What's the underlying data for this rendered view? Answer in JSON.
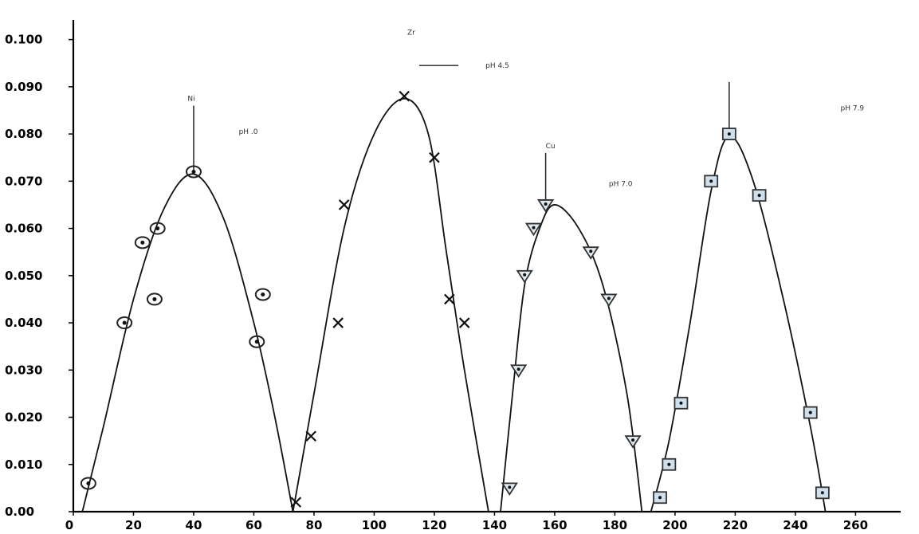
{
  "chart_data": {
    "type": "scatter",
    "title": "",
    "xlabel": "",
    "ylabel": "",
    "xlim": [
      0,
      275
    ],
    "ylim": [
      0,
      0.105
    ],
    "x_ticks": [
      {
        "value": 0,
        "label": "0"
      },
      {
        "value": 20,
        "label": "20"
      },
      {
        "value": 40,
        "label": "40"
      },
      {
        "value": 60,
        "label": "60"
      },
      {
        "value": 80,
        "label": "80"
      },
      {
        "value": 100,
        "label": "100"
      },
      {
        "value": 120,
        "label": "120"
      },
      {
        "value": 140,
        "label": "140"
      },
      {
        "value": 160,
        "label": "160"
      },
      {
        "value": 180,
        "label": "180"
      },
      {
        "value": 200,
        "label": "200"
      },
      {
        "value": 220,
        "label": "220"
      },
      {
        "value": 240,
        "label": "240"
      },
      {
        "value": 260,
        "label": "260"
      }
    ],
    "y_ticks": [
      {
        "value": 0,
        "label": "0.00"
      },
      {
        "value": 0.01,
        "label": "0.010"
      },
      {
        "value": 0.02,
        "label": "0.020"
      },
      {
        "value": 0.03,
        "label": "0.030"
      },
      {
        "value": 0.04,
        "label": "0.040"
      },
      {
        "value": 0.05,
        "label": "0.050"
      },
      {
        "value": 0.06,
        "label": "0.060"
      },
      {
        "value": 0.07,
        "label": "0.070"
      },
      {
        "value": 0.08,
        "label": "0.080"
      },
      {
        "value": 0.09,
        "label": "0.090"
      },
      {
        "value": 0.1,
        "label": "0.100"
      }
    ],
    "grid": false,
    "series": [
      {
        "marker": "circle",
        "points": [
          [
            5,
            0.006
          ],
          [
            17,
            0.04
          ],
          [
            23,
            0.057
          ],
          [
            27,
            0.045
          ],
          [
            28,
            0.06
          ],
          [
            40,
            0.072
          ],
          [
            61,
            0.036
          ],
          [
            63,
            0.046
          ]
        ],
        "curve": [
          [
            3,
            0.0
          ],
          [
            10,
            0.018
          ],
          [
            20,
            0.045
          ],
          [
            30,
            0.064
          ],
          [
            40,
            0.0715
          ],
          [
            50,
            0.062
          ],
          [
            60,
            0.04
          ],
          [
            67,
            0.02
          ],
          [
            73,
            0.0
          ]
        ],
        "peak": {
          "x": 40,
          "y": 0.072,
          "line_top": 0.086
        }
      },
      {
        "marker": "x",
        "points": [
          [
            74,
            0.002
          ],
          [
            79,
            0.016
          ],
          [
            88,
            0.04
          ],
          [
            90,
            0.065
          ],
          [
            110,
            0.088
          ],
          [
            120,
            0.075
          ],
          [
            125,
            0.045
          ],
          [
            130,
            0.04
          ]
        ],
        "curve": [
          [
            73,
            0.0
          ],
          [
            80,
            0.025
          ],
          [
            90,
            0.06
          ],
          [
            100,
            0.08
          ],
          [
            110,
            0.0875
          ],
          [
            118,
            0.08
          ],
          [
            124,
            0.055
          ],
          [
            130,
            0.03
          ],
          [
            138,
            0.0
          ]
        ],
        "peak": {
          "x": 110,
          "y": 0.088
        }
      },
      {
        "marker": "triangle",
        "points": [
          [
            145,
            0.005
          ],
          [
            148,
            0.03
          ],
          [
            150,
            0.05
          ],
          [
            153,
            0.06
          ],
          [
            157,
            0.065
          ],
          [
            172,
            0.055
          ],
          [
            178,
            0.045
          ],
          [
            186,
            0.015
          ]
        ],
        "curve": [
          [
            142,
            0.0
          ],
          [
            146,
            0.025
          ],
          [
            150,
            0.048
          ],
          [
            155,
            0.06
          ],
          [
            160,
            0.065
          ],
          [
            168,
            0.06
          ],
          [
            176,
            0.048
          ],
          [
            184,
            0.025
          ],
          [
            189,
            0.0
          ]
        ],
        "peak": {
          "x": 157,
          "y": 0.065,
          "line_top": 0.076
        }
      },
      {
        "marker": "square",
        "points": [
          [
            195,
            0.003
          ],
          [
            198,
            0.01
          ],
          [
            202,
            0.023
          ],
          [
            212,
            0.07
          ],
          [
            218,
            0.08
          ],
          [
            228,
            0.067
          ],
          [
            245,
            0.021
          ],
          [
            249,
            0.004
          ]
        ],
        "curve": [
          [
            192,
            0.0
          ],
          [
            198,
            0.015
          ],
          [
            205,
            0.04
          ],
          [
            212,
            0.068
          ],
          [
            218,
            0.0795
          ],
          [
            226,
            0.07
          ],
          [
            236,
            0.045
          ],
          [
            245,
            0.018
          ],
          [
            250,
            0.0
          ]
        ],
        "peak": {
          "x": 218,
          "y": 0.08,
          "line_top": 0.091
        }
      }
    ],
    "annotations": [
      {
        "text": "Ni",
        "x": 38,
        "y": 0.087
      },
      {
        "text": "pH .0",
        "x": 55,
        "y": 0.08
      },
      {
        "text": "Zr",
        "x": 111,
        "y": 0.101
      },
      {
        "text": "pH 4.5",
        "x": 137,
        "y": 0.094
      },
      {
        "text": "Cu",
        "x": 157,
        "y": 0.077
      },
      {
        "text": "pH 7.0",
        "x": 178,
        "y": 0.069
      },
      {
        "text": "",
        "x": 218,
        "y": 0.092
      },
      {
        "text": "pH 7.9",
        "x": 255,
        "y": 0.085
      }
    ],
    "pH45_line": {
      "x1": 115,
      "x2": 128,
      "y": 0.0945
    }
  }
}
